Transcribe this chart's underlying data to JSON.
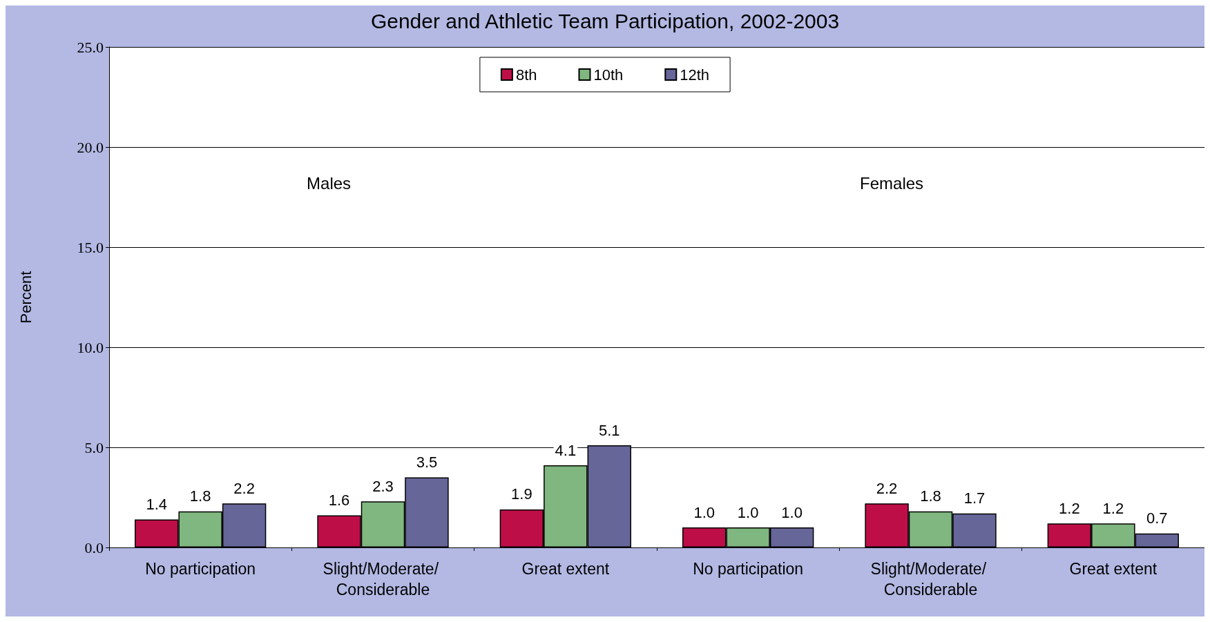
{
  "chart_data": {
    "type": "bar",
    "title": "Gender and Athletic Team Participation, 2002-2003",
    "ylabel": "Percent",
    "categories": [
      "No participation",
      "Slight/Moderate/ Considerable",
      "Great extent",
      "No participation",
      "Slight/Moderate/ Considerable",
      "Great extent"
    ],
    "series": [
      {
        "name": "8th",
        "color": "#be0e48",
        "values": [
          1.4,
          1.6,
          1.9,
          1.0,
          2.2,
          1.2
        ],
        "value_labels": [
          "1.4",
          "1.6",
          "1.9",
          "1.0",
          "2.2",
          "1.2"
        ]
      },
      {
        "name": "10th",
        "color": "#80b780",
        "values": [
          1.8,
          2.3,
          4.1,
          1.0,
          1.8,
          1.2
        ],
        "value_labels": [
          "1.8",
          "2.3",
          "4.1",
          "1.0",
          "1.8",
          "1.2"
        ]
      },
      {
        "name": "12th",
        "color": "#666699",
        "values": [
          2.2,
          3.5,
          5.1,
          1.0,
          1.7,
          0.7
        ],
        "value_labels": [
          "2.2",
          "3.5",
          "5.1",
          "1.0",
          "1.7",
          "0.7"
        ]
      }
    ],
    "ylim": [
      0,
      25
    ],
    "yticks": [
      {
        "value": 0,
        "label": "0.0"
      },
      {
        "value": 5,
        "label": "5.0"
      },
      {
        "value": 10,
        "label": "10.0"
      },
      {
        "value": 15,
        "label": "15.0"
      },
      {
        "value": 20,
        "label": "20.0"
      },
      {
        "value": 25,
        "label": "25.0"
      }
    ],
    "grid": "y",
    "legend": "top",
    "annotations": [
      "Males",
      "Females"
    ]
  }
}
